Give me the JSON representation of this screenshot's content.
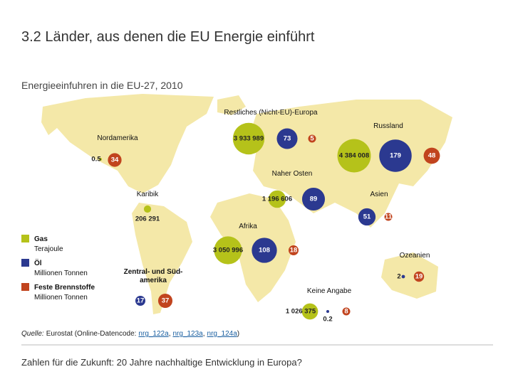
{
  "header": {
    "title": "3.2 Länder, aus denen die EU Energie einführt",
    "subtitle": "Energieeinfuhren in die EU-27, 2010"
  },
  "legend": [
    {
      "name": "Gas",
      "unit": "Terajoule",
      "color": "#b5c21a"
    },
    {
      "name": "Öl",
      "unit": "Millionen Tonnen",
      "color": "#2b3990"
    },
    {
      "name": "Feste Brennstoffe",
      "unit": "Millionen Tonnen",
      "color": "#c1441e"
    }
  ],
  "regions": [
    {
      "name": "Restliches (Nicht-EU)-Europa",
      "gas": {
        "value": 3933989,
        "label": "3 933 989"
      },
      "oil": 73,
      "solid": 5
    },
    {
      "name": "Russland",
      "gas": {
        "value": 4384008,
        "label": "4 384 008"
      },
      "oil": 179,
      "solid": 48
    },
    {
      "name": "Nordamerika",
      "gas": 0.5,
      "solid": 34
    },
    {
      "name": "Naher Osten",
      "gas": {
        "value": 1196606,
        "label": "1 196 606"
      },
      "oil": 89
    },
    {
      "name": "Karibik",
      "gas": {
        "value": 206291,
        "label": "206 291"
      }
    },
    {
      "name": "Asien",
      "oil": 51,
      "solid": 11
    },
    {
      "name": "Afrika",
      "gas": {
        "value": 3050996,
        "label": "3 050 996"
      },
      "oil": 108,
      "solid": 18
    },
    {
      "name": "Ozeanien",
      "oil": 2,
      "solid": 19
    },
    {
      "name": [
        "Zentral- und Süd-",
        "amerika"
      ],
      "oil": 17,
      "solid": 37
    },
    {
      "name": "Keine Angabe",
      "gas": {
        "value": 1026375,
        "label": "1 026 375"
      },
      "oil": 0.2,
      "solid": 8
    }
  ],
  "source": {
    "label": "Quelle:",
    "prefix": "Eurostat (Online-Datencode:",
    "codes": [
      "nrg_122a",
      "nrg_123a",
      "nrg_124a"
    ],
    "separator": ",",
    "suffix": ")"
  },
  "footer": "Zahlen für die Zukunft: 20 Jahre nachhaltige Entwicklung in Europa?"
}
